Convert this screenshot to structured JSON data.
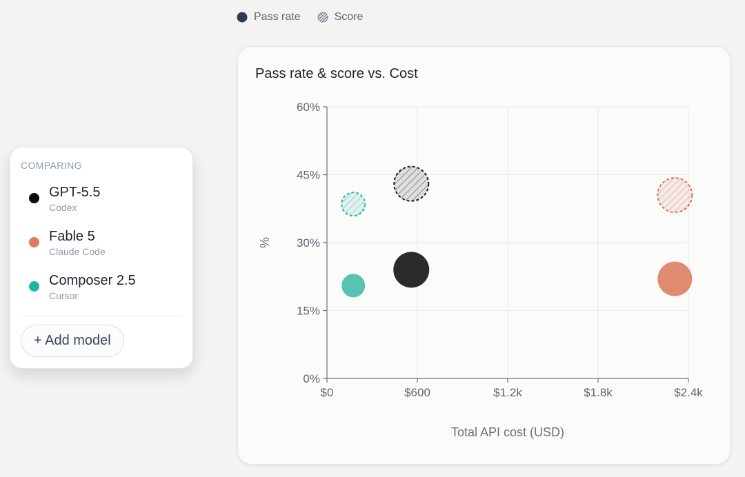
{
  "legend": {
    "pass_rate": "Pass rate",
    "score": "Score",
    "pass_icon": "filled-circle-icon",
    "score_icon": "hatched-circle-icon"
  },
  "sidebar": {
    "header": "COMPARING",
    "models": [
      {
        "name": "GPT-5.5",
        "sub": "Codex",
        "color": "#0d0d0d"
      },
      {
        "name": "Fable 5",
        "sub": "Claude Code",
        "color": "#e07a5f"
      },
      {
        "name": "Composer 2.5",
        "sub": "Cursor",
        "color": "#1fb5a3"
      }
    ],
    "add_label": "+ Add model"
  },
  "chart_data": {
    "type": "scatter",
    "title": "Pass rate & score vs. Cost",
    "xlabel": "Total API cost (USD)",
    "ylabel": "%",
    "xlim": [
      0,
      2400
    ],
    "ylim": [
      0,
      60
    ],
    "x_ticks": [
      0,
      600,
      1200,
      1800,
      2400
    ],
    "x_tick_labels": [
      "$0",
      "$600",
      "$1.2k",
      "$1.8k",
      "$2.4k"
    ],
    "y_ticks": [
      0,
      15,
      30,
      45,
      60
    ],
    "y_tick_labels": [
      "0%",
      "15%",
      "30%",
      "45%",
      "60%"
    ],
    "grid": true,
    "series": [
      {
        "metric": "Pass rate",
        "style": "filled",
        "points": [
          {
            "model": "GPT-5.5",
            "x": 560,
            "y": 24,
            "color": "#2b2b2b"
          },
          {
            "model": "Fable 5",
            "x": 2310,
            "y": 22,
            "color": "#e08a70"
          },
          {
            "model": "Composer 2.5",
            "x": 175,
            "y": 20.5,
            "color": "#56c3b3"
          }
        ]
      },
      {
        "metric": "Score",
        "style": "hatched",
        "points": [
          {
            "model": "GPT-5.5",
            "x": 560,
            "y": 43,
            "color": "#1a1a1a"
          },
          {
            "model": "Fable 5",
            "x": 2310,
            "y": 40.5,
            "color": "#d0785c"
          },
          {
            "model": "Composer 2.5",
            "x": 175,
            "y": 38.5,
            "color": "#2fb3a3"
          }
        ]
      }
    ]
  }
}
